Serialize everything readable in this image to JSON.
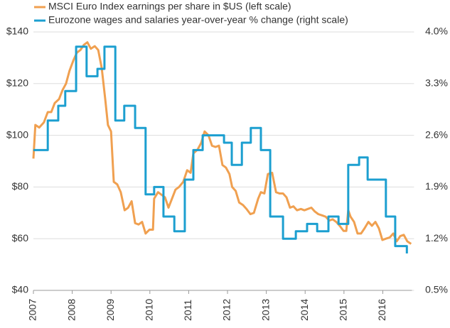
{
  "chart_data": {
    "type": "line",
    "xlim": [
      2007,
      2016.75
    ],
    "xticks": [
      2007,
      2008,
      2009,
      2010,
      2011,
      2012,
      2013,
      2014,
      2015,
      2016
    ],
    "ylim": [
      40,
      140
    ],
    "yticks": [
      {
        "value": 40,
        "label": "$40"
      },
      {
        "value": 60,
        "label": "$60"
      },
      {
        "value": 80,
        "label": "$80"
      },
      {
        "value": 100,
        "label": "$100"
      },
      {
        "value": 120,
        "label": "$120"
      },
      {
        "value": 140,
        "label": "$140"
      }
    ],
    "y2lim": [
      0.5,
      4.0
    ],
    "y2ticks": [
      {
        "value": 0.5,
        "label": "0.5%"
      },
      {
        "value": 1.2,
        "label": "1.2%"
      },
      {
        "value": 1.9,
        "label": "1.9%"
      },
      {
        "value": 2.6,
        "label": "2.6%"
      },
      {
        "value": 3.3,
        "label": "3.3%"
      },
      {
        "value": 4.0,
        "label": "4.0%"
      }
    ],
    "grid": true,
    "series": [
      {
        "name": "MSCI Euro Index earnings per share in $US (left scale)",
        "color": "#f0a050",
        "x": [
          2007.0,
          2007.05,
          2007.15,
          2007.27,
          2007.37,
          2007.46,
          2007.55,
          2007.66,
          2007.75,
          2007.84,
          2007.93,
          2008.03,
          2008.12,
          2008.21,
          2008.3,
          2008.39,
          2008.48,
          2008.58,
          2008.67,
          2008.76,
          2008.85,
          2008.92,
          2009.0,
          2009.07,
          2009.16,
          2009.25,
          2009.35,
          2009.44,
          2009.53,
          2009.62,
          2009.71,
          2009.8,
          2009.89,
          2009.99,
          2010.08,
          2010.11,
          2010.21,
          2010.3,
          2010.39,
          2010.48,
          2010.57,
          2010.66,
          2010.75,
          2010.86,
          2010.96,
          2011.05,
          2011.12,
          2011.23,
          2011.32,
          2011.41,
          2011.51,
          2011.6,
          2011.69,
          2011.78,
          2011.87,
          2011.96,
          2012.05,
          2012.12,
          2012.21,
          2012.3,
          2012.4,
          2012.49,
          2012.59,
          2012.68,
          2012.79,
          2012.86,
          2012.95,
          2013.04,
          2013.15,
          2013.25,
          2013.34,
          2013.43,
          2013.52,
          2013.61,
          2013.7,
          2013.79,
          2013.89,
          2013.98,
          2014.07,
          2014.16,
          2014.25,
          2014.34,
          2014.44,
          2014.53,
          2014.62,
          2014.71,
          2014.8,
          2014.89,
          2014.99,
          2015.06,
          2015.11,
          2015.17,
          2015.26,
          2015.35,
          2015.44,
          2015.53,
          2015.63,
          2015.72,
          2015.81,
          2015.9,
          2015.99,
          2016.08,
          2016.18,
          2016.27,
          2016.36,
          2016.45,
          2016.54,
          2016.63,
          2016.73
        ],
        "values": [
          91,
          104,
          103,
          105,
          109,
          109,
          112.5,
          114,
          117.5,
          120,
          125,
          129,
          132,
          133,
          135,
          136,
          133.5,
          134.5,
          133,
          126,
          114,
          104,
          101.5,
          82,
          81,
          78,
          71,
          72,
          74.5,
          66,
          65.5,
          66.5,
          62,
          63.5,
          63.5,
          75.5,
          78,
          77,
          76,
          72,
          75.5,
          79,
          80,
          82,
          86.5,
          85.5,
          93,
          94.5,
          97,
          101.5,
          100,
          96,
          95.5,
          96,
          88.5,
          87.5,
          85,
          80,
          78.5,
          74,
          73,
          71.5,
          69.5,
          70,
          75.5,
          78,
          77.5,
          85,
          85.5,
          78,
          77.5,
          77.5,
          76,
          72,
          72.5,
          71,
          71.5,
          71,
          71.5,
          72,
          70.5,
          69.5,
          69,
          68.5,
          67,
          67.5,
          66.5,
          65,
          63,
          63,
          71,
          68.5,
          66.5,
          62,
          62,
          64,
          66.5,
          65,
          66.5,
          64,
          59.5,
          60,
          60.5,
          62,
          59,
          61,
          61.5,
          59,
          58
        ]
      },
      {
        "name": "Eurozone wages and salaries year-over-year % change (right scale)",
        "color": "#1c9fd0",
        "axis": "y2",
        "step": "post",
        "x": [
          2007.0,
          2007.37,
          2007.64,
          2007.82,
          2008.1,
          2008.37,
          2008.65,
          2008.83,
          2009.11,
          2009.34,
          2009.62,
          2009.89,
          2010.11,
          2010.35,
          2010.63,
          2010.9,
          2011.12,
          2011.36,
          2011.91,
          2012.11,
          2012.37,
          2012.6,
          2012.86,
          2013.1,
          2013.43,
          2013.76,
          2014.05,
          2014.31,
          2014.6,
          2014.86,
          2015.11,
          2015.39,
          2015.61,
          2016.08,
          2016.32,
          2016.62
        ],
        "values": [
          2.4,
          2.8,
          3.0,
          3.2,
          3.8,
          3.4,
          3.5,
          3.8,
          2.8,
          3.0,
          2.7,
          1.8,
          1.9,
          1.5,
          1.3,
          2.0,
          2.4,
          2.6,
          2.5,
          2.2,
          2.5,
          2.7,
          2.4,
          1.5,
          1.2,
          1.3,
          1.4,
          1.3,
          1.5,
          1.4,
          2.2,
          2.3,
          2.0,
          1.5,
          1.1,
          1.0
        ]
      }
    ]
  }
}
